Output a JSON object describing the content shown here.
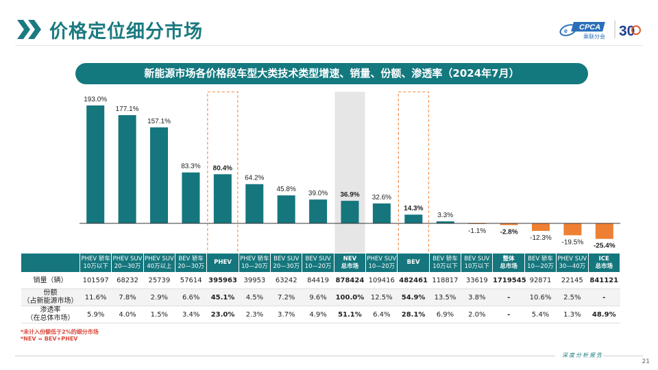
{
  "header": {
    "title": "价格定位细分市场",
    "logo_text": "CPCA",
    "logo_subtext": "乘联分会",
    "logo_badge": "30"
  },
  "banner": {
    "title": "新能源市场各价格段车型大类技术类型增速、销量、份额、渗透率（2024年7月）"
  },
  "chart_data": {
    "type": "bar",
    "title": "新能源市场各价格段车型大类技术类型增速、销量、份额、渗透率（2024年7月）",
    "categories": [
      "PHEV 轿车\n10万以下",
      "PHEV SUV\n20—30万",
      "PHEV SUV\n40万以上",
      "BEV 轿车\n20—30万",
      "PHEV",
      "PHEV 轿车\n10—20万",
      "BEV SUV\n20—30万",
      "BEV SUV\n10—20万",
      "NEV\n总市场",
      "PHEV SUV\n10—20万",
      "BEV",
      "BEV 轿车\n10万以下",
      "BEV SUV\n10万以下",
      "整体\n总市场",
      "BEV 轿车\n10—20万",
      "PHEV SUV\n30—40万",
      "ICE\n总市场"
    ],
    "values": [
      193.0,
      177.1,
      157.1,
      83.3,
      80.4,
      64.2,
      45.8,
      39.0,
      36.9,
      32.6,
      14.3,
      3.3,
      -1.1,
      -2.8,
      -12.3,
      -19.5,
      -25.4
    ],
    "value_labels": [
      "193.0%",
      "177.1%",
      "157.1%",
      "83.3%",
      "80.4%",
      "64.2%",
      "45.8%",
      "39.0%",
      "36.9%",
      "32.6%",
      "14.3%",
      "3.3%",
      "-1.1%",
      "-2.8%",
      "-12.3%",
      "-19.5%",
      "-25.4%"
    ],
    "bold_labels": [
      4,
      8,
      10,
      13,
      16
    ],
    "highlight_dashed": [
      4,
      10
    ],
    "highlight_shaded": [
      8
    ],
    "ylim": [
      -30,
      200
    ],
    "grid": false,
    "colors": {
      "positive": "#15767d",
      "negative": "#ee8033",
      "highlight": "#ee8033",
      "shade": "#e6e6e6"
    }
  },
  "table": {
    "rows": [
      {
        "label": "销量（辆）",
        "values": [
          "101597",
          "68232",
          "25739",
          "57614",
          "395963",
          "39953",
          "63242",
          "84419",
          "878424",
          "109416",
          "482461",
          "118817",
          "33619",
          "1719545",
          "92871",
          "22145",
          "841121"
        ]
      },
      {
        "label": "份额\n（占新能源市场）",
        "values": [
          "11.6%",
          "7.8%",
          "2.9%",
          "6.6%",
          "45.1%",
          "4.5%",
          "7.2%",
          "9.6%",
          "100.0%",
          "12.5%",
          "54.9%",
          "13.5%",
          "3.8%",
          "-",
          "10.6%",
          "2.5%",
          "-"
        ]
      },
      {
        "label": "渗透率\n（在总体市场）",
        "values": [
          "5.9%",
          "4.0%",
          "1.5%",
          "3.4%",
          "23.0%",
          "2.3%",
          "3.7%",
          "4.9%",
          "51.1%",
          "6.4%",
          "28.1%",
          "6.9%",
          "2.0%",
          "-",
          "5.4%",
          "1.3%",
          "48.9%"
        ]
      }
    ],
    "bold_columns": [
      4,
      8,
      10,
      13,
      16
    ]
  },
  "footnotes": {
    "line1": "*未计入份额低于2%的细分市场",
    "line2": "*NEV = BEV+PHEV"
  },
  "footer": {
    "label": "深度分析报告",
    "page_number": "21"
  }
}
